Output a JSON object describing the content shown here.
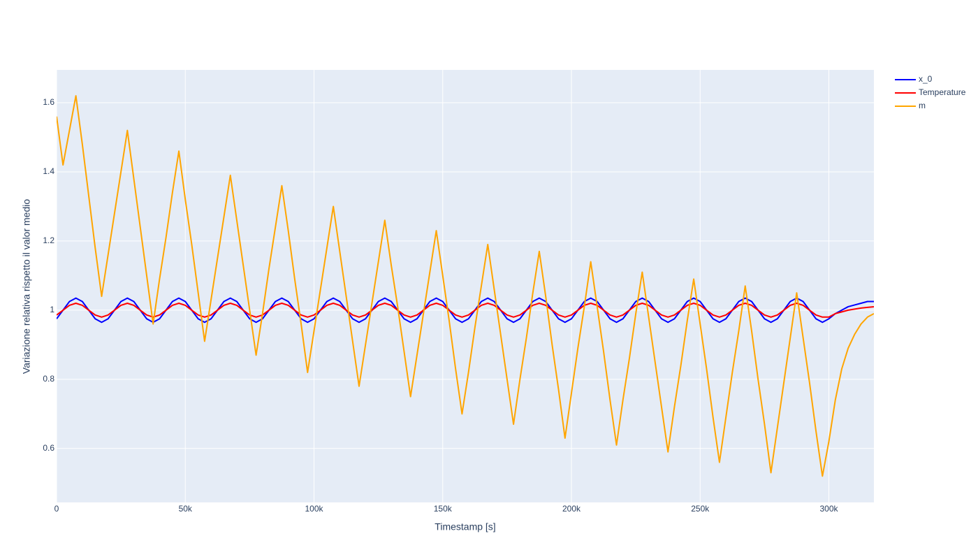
{
  "chart_data": {
    "type": "line",
    "xlabel": "Timestamp [s]",
    "ylabel": "Variazione relativa rispetto il valor medio",
    "x": [
      0,
      2500,
      5000,
      7500,
      10000,
      12500,
      15000,
      17500,
      20000,
      22500,
      25000,
      27500,
      30000,
      32500,
      35000,
      37500,
      40000,
      42500,
      45000,
      47500,
      50000,
      52500,
      55000,
      57500,
      60000,
      62500,
      65000,
      67500,
      70000,
      72500,
      75000,
      77500,
      80000,
      82500,
      85000,
      87500,
      90000,
      92500,
      95000,
      97500,
      100000,
      102500,
      105000,
      107500,
      110000,
      112500,
      115000,
      117500,
      120000,
      122500,
      125000,
      127500,
      130000,
      132500,
      135000,
      137500,
      140000,
      142500,
      145000,
      147500,
      150000,
      152500,
      155000,
      157500,
      160000,
      162500,
      165000,
      167500,
      170000,
      172500,
      175000,
      177500,
      180000,
      182500,
      185000,
      187500,
      190000,
      192500,
      195000,
      197500,
      200000,
      202500,
      205000,
      207500,
      210000,
      212500,
      215000,
      217500,
      220000,
      222500,
      225000,
      227500,
      230000,
      232500,
      235000,
      237500,
      240000,
      242500,
      245000,
      247500,
      250000,
      252500,
      255000,
      257500,
      260000,
      262500,
      265000,
      267500,
      270000,
      272500,
      275000,
      277500,
      280000,
      282500,
      285000,
      287500,
      290000,
      292500,
      295000,
      297500,
      300000,
      302500,
      305000,
      307500,
      310000,
      312500,
      315000,
      317500
    ],
    "series": [
      {
        "name": "x_0",
        "color": "#0000ff",
        "values": [
          0.975,
          1.0,
          1.025,
          1.035,
          1.025,
          1.0,
          0.975,
          0.965,
          0.975,
          1.0,
          1.025,
          1.035,
          1.025,
          1.0,
          0.975,
          0.965,
          0.975,
          1.0,
          1.025,
          1.035,
          1.025,
          1.0,
          0.975,
          0.965,
          0.975,
          1.0,
          1.025,
          1.035,
          1.025,
          1.0,
          0.975,
          0.965,
          0.975,
          1.0,
          1.025,
          1.035,
          1.025,
          1.0,
          0.975,
          0.965,
          0.975,
          1.0,
          1.025,
          1.035,
          1.025,
          1.0,
          0.975,
          0.965,
          0.975,
          1.0,
          1.025,
          1.035,
          1.025,
          1.0,
          0.975,
          0.965,
          0.975,
          1.0,
          1.025,
          1.035,
          1.025,
          1.0,
          0.975,
          0.965,
          0.975,
          1.0,
          1.025,
          1.035,
          1.025,
          1.0,
          0.975,
          0.965,
          0.975,
          1.0,
          1.025,
          1.035,
          1.025,
          1.0,
          0.975,
          0.965,
          0.975,
          1.0,
          1.025,
          1.035,
          1.025,
          1.0,
          0.975,
          0.965,
          0.975,
          1.0,
          1.025,
          1.035,
          1.025,
          1.0,
          0.975,
          0.965,
          0.975,
          1.0,
          1.025,
          1.035,
          1.025,
          1.0,
          0.975,
          0.965,
          0.975,
          1.0,
          1.025,
          1.035,
          1.025,
          1.0,
          0.975,
          0.965,
          0.975,
          1.0,
          1.025,
          1.035,
          1.025,
          1.0,
          0.975,
          0.965,
          0.975,
          0.99,
          1.0,
          1.01,
          1.015,
          1.02,
          1.025,
          1.025
        ]
      },
      {
        "name": "Temperature",
        "color": "#ff0000",
        "values": [
          0.986,
          1.0,
          1.014,
          1.02,
          1.014,
          1.0,
          0.986,
          0.98,
          0.986,
          1.0,
          1.014,
          1.02,
          1.014,
          1.0,
          0.986,
          0.98,
          0.986,
          1.0,
          1.014,
          1.02,
          1.014,
          1.0,
          0.986,
          0.98,
          0.986,
          1.0,
          1.014,
          1.02,
          1.014,
          1.0,
          0.986,
          0.98,
          0.986,
          1.0,
          1.014,
          1.02,
          1.014,
          1.0,
          0.986,
          0.98,
          0.986,
          1.0,
          1.014,
          1.02,
          1.014,
          1.0,
          0.986,
          0.98,
          0.986,
          1.0,
          1.014,
          1.02,
          1.014,
          1.0,
          0.986,
          0.98,
          0.986,
          1.0,
          1.014,
          1.02,
          1.014,
          1.0,
          0.986,
          0.98,
          0.986,
          1.0,
          1.014,
          1.02,
          1.014,
          1.0,
          0.986,
          0.98,
          0.986,
          1.0,
          1.014,
          1.02,
          1.014,
          1.0,
          0.986,
          0.98,
          0.986,
          1.0,
          1.014,
          1.02,
          1.014,
          1.0,
          0.986,
          0.98,
          0.986,
          1.0,
          1.014,
          1.02,
          1.014,
          1.0,
          0.986,
          0.98,
          0.986,
          1.0,
          1.014,
          1.02,
          1.014,
          1.0,
          0.986,
          0.98,
          0.986,
          1.0,
          1.014,
          1.02,
          1.014,
          1.0,
          0.986,
          0.98,
          0.986,
          1.0,
          1.014,
          1.02,
          1.014,
          1.0,
          0.986,
          0.98,
          0.98,
          0.99,
          0.995,
          1.0,
          1.003,
          1.006,
          1.008,
          1.01
        ]
      },
      {
        "name": "m",
        "color": "#ffa500",
        "values": [
          1.56,
          1.42,
          1.52,
          1.62,
          1.48,
          1.33,
          1.18,
          1.04,
          1.16,
          1.28,
          1.4,
          1.52,
          1.38,
          1.24,
          1.1,
          0.96,
          1.09,
          1.21,
          1.34,
          1.46,
          1.32,
          1.19,
          1.05,
          0.91,
          1.03,
          1.15,
          1.27,
          1.39,
          1.26,
          1.13,
          1.0,
          0.87,
          0.99,
          1.12,
          1.24,
          1.36,
          1.23,
          1.09,
          0.96,
          0.82,
          0.94,
          1.06,
          1.18,
          1.3,
          1.17,
          1.04,
          0.91,
          0.78,
          0.9,
          1.02,
          1.14,
          1.26,
          1.13,
          1.01,
          0.88,
          0.75,
          0.87,
          0.99,
          1.11,
          1.23,
          1.1,
          0.97,
          0.83,
          0.7,
          0.82,
          0.95,
          1.07,
          1.19,
          1.06,
          0.93,
          0.8,
          0.67,
          0.8,
          0.92,
          1.05,
          1.17,
          1.04,
          0.9,
          0.77,
          0.63,
          0.76,
          0.89,
          1.01,
          1.14,
          1.01,
          0.88,
          0.74,
          0.61,
          0.74,
          0.86,
          0.99,
          1.11,
          0.98,
          0.85,
          0.72,
          0.59,
          0.72,
          0.84,
          0.97,
          1.09,
          0.96,
          0.83,
          0.69,
          0.56,
          0.69,
          0.82,
          0.94,
          1.07,
          0.94,
          0.8,
          0.67,
          0.53,
          0.66,
          0.79,
          0.92,
          1.05,
          0.92,
          0.79,
          0.65,
          0.52,
          0.62,
          0.74,
          0.83,
          0.89,
          0.93,
          0.96,
          0.98,
          0.99
        ]
      }
    ],
    "xlim": [
      0,
      317500
    ],
    "xticks": [
      0,
      {
        "value": 50000,
        "label": "50k"
      },
      {
        "value": 100000,
        "label": "100k"
      },
      {
        "value": 150000,
        "label": "150k"
      },
      {
        "value": 200000,
        "label": "200k"
      },
      {
        "value": 250000,
        "label": "250k"
      },
      {
        "value": 300000,
        "label": "300k"
      }
    ],
    "ylim": [
      0.444,
      1.695
    ],
    "yticks": [
      0.6,
      0.8,
      1,
      1.2,
      1.4,
      1.6
    ],
    "grid": true,
    "legend": "outside-right"
  }
}
